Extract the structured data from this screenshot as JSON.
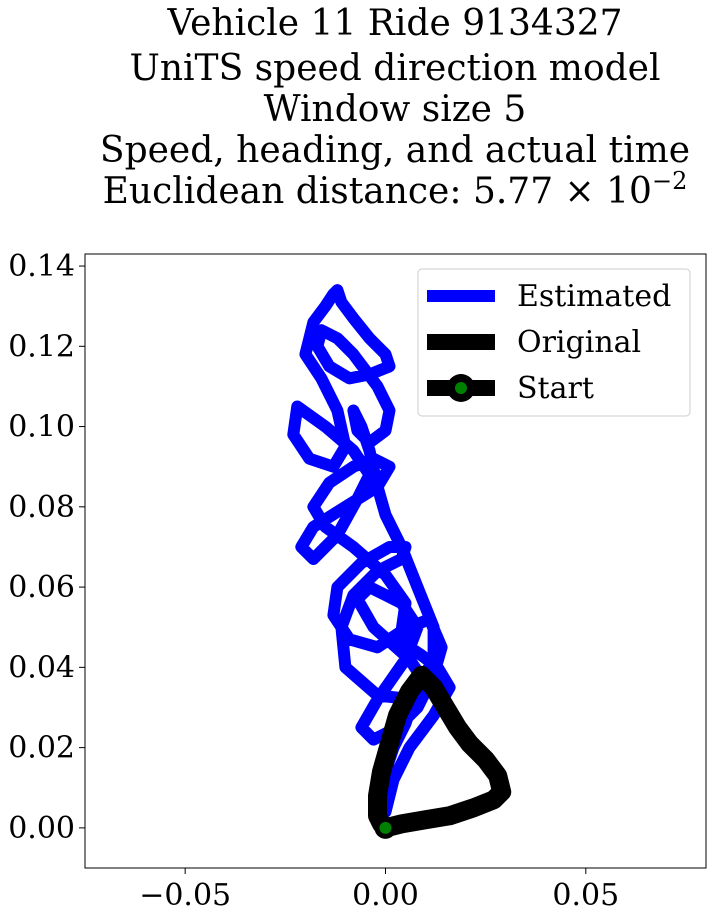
{
  "chart_data": {
    "type": "line",
    "title_lines": [
      "Vehicle 11 Ride 9134327",
      "UniTS speed direction model",
      "Window size 5",
      "Speed, heading, and actual time"
    ],
    "title_metric_prefix": "Euclidean distance: ",
    "title_metric_mantissa": "5.77",
    "title_metric_times": "×",
    "title_metric_base": "10",
    "title_metric_exponent": "−2",
    "xlabel": "",
    "ylabel": "",
    "xlim": [
      -0.075,
      0.08
    ],
    "ylim": [
      -0.01,
      0.143
    ],
    "x_ticks": [
      -0.05,
      0.0,
      0.05
    ],
    "x_tick_labels": [
      "−0.05",
      "0.00",
      "0.05"
    ],
    "y_ticks": [
      0.0,
      0.02,
      0.04,
      0.06,
      0.08,
      0.1,
      0.12,
      0.14
    ],
    "y_tick_labels": [
      "0.00",
      "0.02",
      "0.04",
      "0.06",
      "0.08",
      "0.10",
      "0.12",
      "0.14"
    ],
    "grid": false,
    "legend_placement": "top-right",
    "series": [
      {
        "name": "Estimated",
        "color": "#0000ff",
        "x": [
          0.0,
          0.002,
          0.006,
          0.012,
          0.016,
          0.013,
          0.009,
          0.006,
          0.004,
          0.006,
          0.011,
          0.014,
          0.012,
          0.008,
          0.003,
          -0.003,
          -0.006,
          -0.002,
          0.005,
          0.008,
          0.004,
          -0.004,
          -0.007,
          -0.003,
          0.006,
          0.01,
          0.007,
          -0.002,
          -0.01,
          -0.011,
          -0.008,
          -0.002,
          0.004,
          0.005,
          0.001,
          -0.006,
          -0.012,
          -0.013,
          -0.009,
          -0.002,
          0.004,
          0.005,
          0.0,
          -0.008,
          -0.015,
          -0.018,
          -0.014,
          -0.008,
          -0.003,
          0.001,
          -0.002,
          -0.01,
          -0.018,
          -0.021,
          -0.018,
          -0.012,
          -0.007,
          -0.004,
          -0.008,
          -0.015,
          -0.022,
          -0.023,
          -0.019,
          -0.013,
          -0.01,
          -0.012,
          -0.016,
          -0.02,
          -0.018,
          -0.015,
          -0.013,
          -0.012,
          -0.011,
          -0.008,
          -0.004,
          0.0,
          0.001,
          -0.004,
          -0.009,
          -0.014,
          -0.017,
          -0.016,
          -0.012,
          -0.008,
          -0.005,
          -0.002,
          0.001,
          0.0,
          -0.004,
          -0.007,
          -0.008,
          -0.006,
          -0.004,
          -0.002,
          0.0,
          0.004,
          0.008,
          0.012,
          0.012,
          0.008,
          0.005,
          0.002,
          0.0
        ],
        "y": [
          0.004,
          0.012,
          0.02,
          0.028,
          0.035,
          0.04,
          0.043,
          0.045,
          0.048,
          0.05,
          0.052,
          0.045,
          0.038,
          0.03,
          0.025,
          0.022,
          0.025,
          0.032,
          0.042,
          0.05,
          0.056,
          0.06,
          0.057,
          0.05,
          0.042,
          0.036,
          0.032,
          0.033,
          0.04,
          0.05,
          0.058,
          0.064,
          0.067,
          0.07,
          0.07,
          0.066,
          0.06,
          0.053,
          0.047,
          0.045,
          0.049,
          0.056,
          0.063,
          0.07,
          0.075,
          0.08,
          0.086,
          0.09,
          0.092,
          0.09,
          0.085,
          0.08,
          0.075,
          0.07,
          0.067,
          0.073,
          0.082,
          0.088,
          0.094,
          0.1,
          0.105,
          0.098,
          0.092,
          0.09,
          0.095,
          0.104,
          0.112,
          0.118,
          0.126,
          0.13,
          0.133,
          0.134,
          0.131,
          0.127,
          0.122,
          0.118,
          0.115,
          0.113,
          0.112,
          0.115,
          0.12,
          0.124,
          0.122,
          0.118,
          0.114,
          0.11,
          0.104,
          0.099,
          0.096,
          0.099,
          0.104,
          0.1,
          0.094,
          0.085,
          0.078,
          0.07,
          0.06,
          0.05,
          0.042,
          0.035,
          0.026,
          0.02,
          0.014
        ]
      },
      {
        "name": "Original",
        "color": "#000000",
        "x": [
          0.0,
          0.004,
          0.01,
          0.016,
          0.022,
          0.027,
          0.029,
          0.028,
          0.025,
          0.021,
          0.018,
          0.015,
          0.012,
          0.009,
          0.006,
          0.003,
          0.001,
          -0.001,
          -0.002,
          -0.002,
          -0.001,
          0.0
        ],
        "y": [
          0.0,
          0.001,
          0.002,
          0.003,
          0.005,
          0.007,
          0.009,
          0.013,
          0.017,
          0.021,
          0.025,
          0.03,
          0.035,
          0.038,
          0.034,
          0.028,
          0.021,
          0.014,
          0.008,
          0.003,
          0.001,
          0.0
        ]
      }
    ],
    "start_marker": {
      "name": "Start",
      "x": 0.0,
      "y": 0.0,
      "fill": "#008000",
      "edge": "#000000"
    }
  }
}
